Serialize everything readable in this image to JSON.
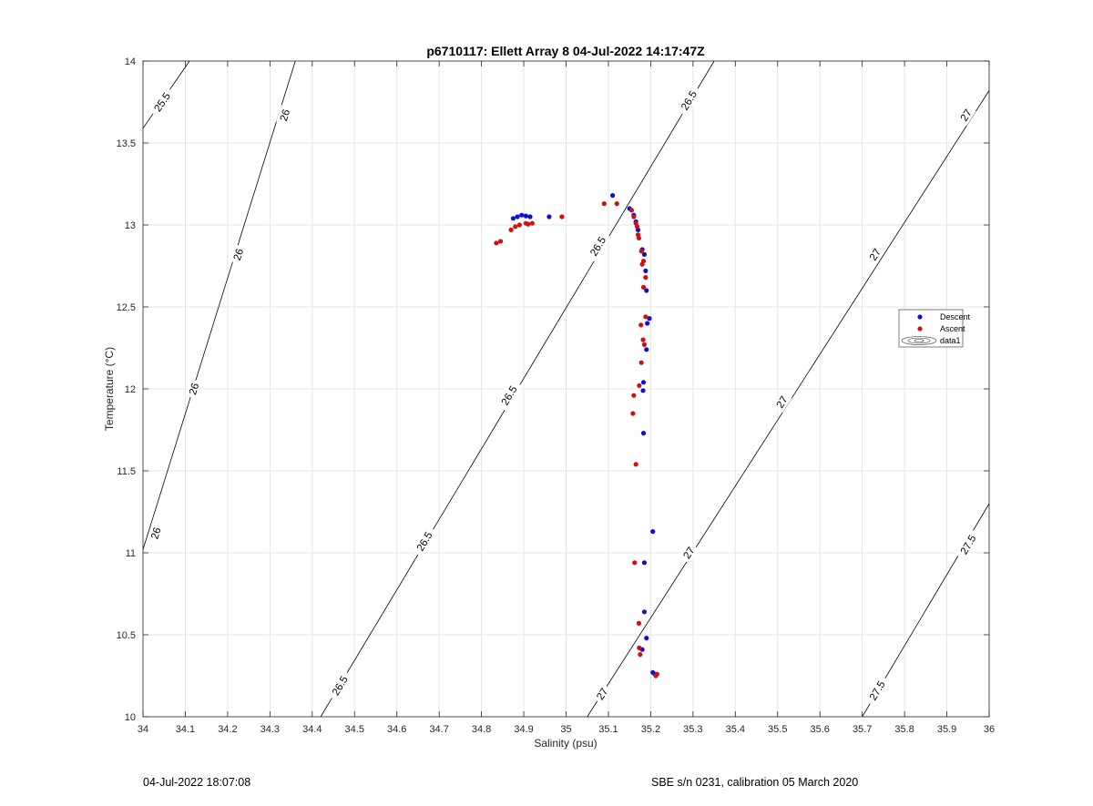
{
  "chart_data": {
    "type": "scatter",
    "title": "p6710117: Ellett Array 8 04-Jul-2022 14:17:47Z",
    "xlabel": "Salinity (psu)",
    "ylabel": "Temperature (°C)",
    "xlim": [
      34,
      36
    ],
    "ylim": [
      10,
      14
    ],
    "xticks": [
      "34",
      "34.1",
      "34.2",
      "34.3",
      "34.4",
      "34.5",
      "34.6",
      "34.7",
      "34.8",
      "34.9",
      "35",
      "35.1",
      "35.2",
      "35.3",
      "35.4",
      "35.5",
      "35.6",
      "35.7",
      "35.8",
      "35.9",
      "36"
    ],
    "yticks": [
      "10",
      "10.5",
      "11",
      "11.5",
      "12",
      "12.5",
      "13",
      "13.5",
      "14"
    ],
    "grid": true,
    "legend_placement": "right",
    "colors": {
      "descent": "#1010d0",
      "ascent": "#d01010",
      "contour": "#000000",
      "grid": "#e6e6e6"
    },
    "series": [
      {
        "name": "Descent",
        "points": [
          [
            34.875,
            13.04
          ],
          [
            34.885,
            13.05
          ],
          [
            34.895,
            13.06
          ],
          [
            34.905,
            13.055
          ],
          [
            34.915,
            13.05
          ],
          [
            34.96,
            13.05
          ],
          [
            35.11,
            13.18
          ],
          [
            35.15,
            13.1
          ],
          [
            35.16,
            13.06
          ],
          [
            35.165,
            13.02
          ],
          [
            35.17,
            12.97
          ],
          [
            35.18,
            12.85
          ],
          [
            35.185,
            12.82
          ],
          [
            35.188,
            12.72
          ],
          [
            35.19,
            12.6
          ],
          [
            35.197,
            12.43
          ],
          [
            35.192,
            12.4
          ],
          [
            35.19,
            12.24
          ],
          [
            35.183,
            12.04
          ],
          [
            35.182,
            11.99
          ],
          [
            35.183,
            11.73
          ],
          [
            35.205,
            11.13
          ],
          [
            35.185,
            10.94
          ],
          [
            35.185,
            10.64
          ],
          [
            35.19,
            10.48
          ],
          [
            35.18,
            10.41
          ],
          [
            35.205,
            10.27
          ],
          [
            35.21,
            10.26
          ]
        ]
      },
      {
        "name": "Ascent",
        "points": [
          [
            34.835,
            12.89
          ],
          [
            34.845,
            12.9
          ],
          [
            34.87,
            12.97
          ],
          [
            34.88,
            12.99
          ],
          [
            34.89,
            13.0
          ],
          [
            34.905,
            13.01
          ],
          [
            34.91,
            13.005
          ],
          [
            34.92,
            13.01
          ],
          [
            34.99,
            13.05
          ],
          [
            35.09,
            13.13
          ],
          [
            35.12,
            13.13
          ],
          [
            35.155,
            13.09
          ],
          [
            35.16,
            13.05
          ],
          [
            35.165,
            13.01
          ],
          [
            35.168,
            12.99
          ],
          [
            35.17,
            12.94
          ],
          [
            35.172,
            12.92
          ],
          [
            35.178,
            12.84
          ],
          [
            35.183,
            12.78
          ],
          [
            35.18,
            12.76
          ],
          [
            35.188,
            12.68
          ],
          [
            35.183,
            12.62
          ],
          [
            35.188,
            12.44
          ],
          [
            35.177,
            12.39
          ],
          [
            35.182,
            12.3
          ],
          [
            35.185,
            12.27
          ],
          [
            35.178,
            12.16
          ],
          [
            35.173,
            12.02
          ],
          [
            35.16,
            11.96
          ],
          [
            35.158,
            11.85
          ],
          [
            35.165,
            11.54
          ],
          [
            35.162,
            10.94
          ],
          [
            35.172,
            10.57
          ],
          [
            35.173,
            10.42
          ],
          [
            35.175,
            10.38
          ],
          [
            35.212,
            10.25
          ],
          [
            35.215,
            10.26
          ]
        ]
      },
      {
        "name": "data1",
        "points": []
      }
    ],
    "contours": [
      {
        "level": 25.5,
        "line": [
          [
            34.0,
            13.59
          ],
          [
            34.11,
            14.0
          ]
        ],
        "labels": [
          {
            "text": "25.5",
            "at": [
              34.045,
              13.75
            ]
          }
        ]
      },
      {
        "level": 26,
        "line": [
          [
            34.0,
            11.02
          ],
          [
            34.36,
            14.0
          ]
        ],
        "labels": [
          {
            "text": "26",
            "at": [
              34.03,
              11.12
            ]
          },
          {
            "text": "26",
            "at": [
              34.12,
              12.0
            ]
          },
          {
            "text": "26",
            "at": [
              34.225,
              12.82
            ]
          },
          {
            "text": "26",
            "at": [
              34.335,
              13.67
            ]
          }
        ]
      },
      {
        "level": 26.5,
        "line": [
          [
            34.42,
            10.0
          ],
          [
            35.35,
            14.0
          ]
        ],
        "labels": [
          {
            "text": "26.5",
            "at": [
              34.465,
              10.19
            ]
          },
          {
            "text": "26.5",
            "at": [
              34.665,
              11.07
            ]
          },
          {
            "text": "26.5",
            "at": [
              34.865,
              11.96
            ]
          },
          {
            "text": "26.5",
            "at": [
              35.075,
              12.87
            ]
          },
          {
            "text": "26.5",
            "at": [
              35.29,
              13.76
            ]
          }
        ]
      },
      {
        "level": 27,
        "line": [
          [
            35.05,
            10.0
          ],
          [
            36.0,
            13.82
          ]
        ],
        "labels": [
          {
            "text": "27",
            "at": [
              35.085,
              10.14
            ]
          },
          {
            "text": "27",
            "at": [
              35.29,
              11.0
            ]
          },
          {
            "text": "27",
            "at": [
              35.51,
              11.92
            ]
          },
          {
            "text": "27",
            "at": [
              35.73,
              12.82
            ]
          },
          {
            "text": "27",
            "at": [
              35.945,
              13.67
            ]
          }
        ]
      },
      {
        "level": 27.5,
        "line": [
          [
            35.7,
            10.0
          ],
          [
            36.0,
            11.3
          ]
        ],
        "labels": [
          {
            "text": "27.5",
            "at": [
              35.735,
              10.16
            ]
          },
          {
            "text": "27.5",
            "at": [
              35.95,
              11.05
            ]
          }
        ]
      }
    ]
  },
  "footer": {
    "left": "04-Jul-2022 18:07:08",
    "right": "SBE s/n 0231, calibration 05 March 2020"
  }
}
